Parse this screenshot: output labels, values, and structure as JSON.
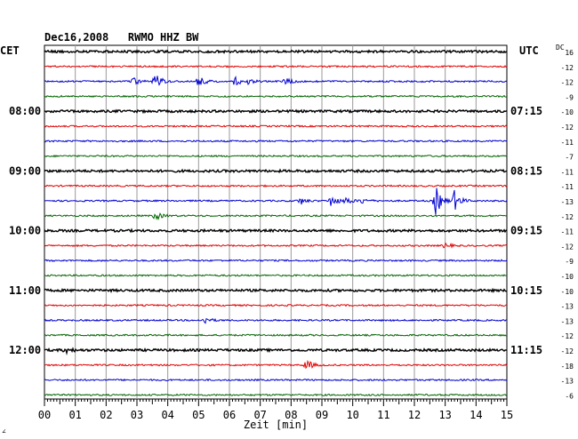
{
  "header": {
    "title": "Dec16,2008   RWMO HHZ BW",
    "left_label": "CET",
    "right_label": "UTC",
    "dc_label": "DC"
  },
  "footer": {
    "corner_mark": "∠"
  },
  "chart_data": {
    "type": "line",
    "title": "Dec16,2008   RWMO HHZ BW",
    "xlabel": "Zeit [min]",
    "xlim": [
      0,
      15
    ],
    "x_ticks": [
      "00",
      "01",
      "02",
      "03",
      "04",
      "05",
      "06",
      "07",
      "08",
      "09",
      "10",
      "11",
      "12",
      "13",
      "14",
      "15"
    ],
    "grid": true,
    "trace_colors": [
      "#000000",
      "#e00000",
      "#0000d0",
      "#006400"
    ],
    "left_time_labels": [
      "08:00",
      "09:00",
      "10:00",
      "11:00",
      "12:00"
    ],
    "right_time_labels": [
      "07:15",
      "08:15",
      "09:15",
      "10:15",
      "11:15"
    ],
    "dc_offsets": [
      16,
      -12,
      -12,
      -9,
      -10,
      -12,
      -11,
      -7,
      -11,
      -11,
      -13,
      -12,
      -11,
      -12,
      -9,
      -10,
      -10,
      -13,
      -13,
      -12,
      -12,
      -18,
      -13,
      -6
    ],
    "events": [
      {
        "trace": 2,
        "x": 2.9,
        "amp": 4
      },
      {
        "trace": 2,
        "x": 3.6,
        "amp": 10
      },
      {
        "trace": 2,
        "x": 5.0,
        "amp": 6
      },
      {
        "trace": 2,
        "x": 6.2,
        "amp": 5
      },
      {
        "trace": 2,
        "x": 6.6,
        "amp": 3
      },
      {
        "trace": 2,
        "x": 7.8,
        "amp": 4
      },
      {
        "trace": 10,
        "x": 8.3,
        "amp": 4
      },
      {
        "trace": 10,
        "x": 9.3,
        "amp": 7
      },
      {
        "trace": 10,
        "x": 9.8,
        "amp": 4
      },
      {
        "trace": 10,
        "x": 10.3,
        "amp": 3
      },
      {
        "trace": 10,
        "x": 12.7,
        "amp": 16
      },
      {
        "trace": 10,
        "x": 13.3,
        "amp": 11
      },
      {
        "trace": 11,
        "x": 3.6,
        "amp": 5
      },
      {
        "trace": 13,
        "x": 13.0,
        "amp": 3
      },
      {
        "trace": 18,
        "x": 5.2,
        "amp": 4
      },
      {
        "trace": 20,
        "x": 0.7,
        "amp": 3
      },
      {
        "trace": 21,
        "x": 8.5,
        "amp": 6
      }
    ]
  }
}
